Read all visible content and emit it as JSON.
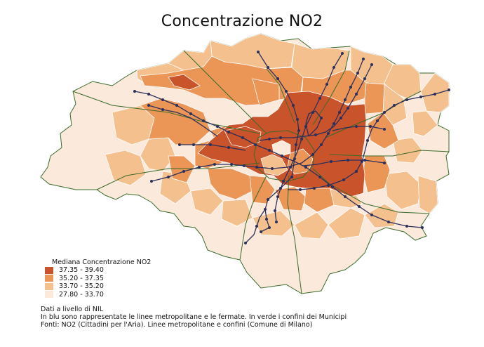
{
  "title": "Concentrazione NO2",
  "legend": {
    "title": "Mediana Concentrazione NO2",
    "classes": [
      {
        "label": "37.35 - 39.40",
        "color": "#c9532a"
      },
      {
        "label": "35.20 - 37.35",
        "color": "#eb9557"
      },
      {
        "label": "33.70 - 35.20",
        "color": "#f4c08e"
      },
      {
        "label": "27.80 - 33.70",
        "color": "#fbe9dc"
      }
    ]
  },
  "notes": [
    "Dati a livello di NIL",
    "In blu sono rappresentate le linee metropolitane e le fermate. In verde i confini dei Municipi",
    "Fonti: NO2 (Cittadini per l'Aria). Linee metropolitane e confini (Comune di Milano)"
  ],
  "colors": {
    "metro_line": "#2b2f5a",
    "municipi_border": "#3a6b2a",
    "nil_border": "#ffffff"
  }
}
